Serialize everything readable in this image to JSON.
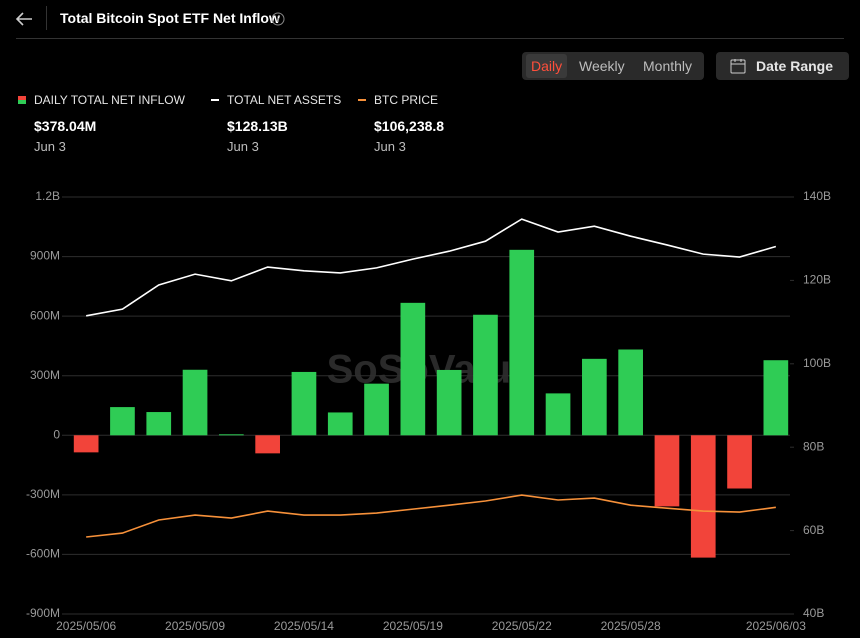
{
  "header": {
    "title": "Total Bitcoin Spot ETF Net Inflow"
  },
  "controls": {
    "periods": [
      "Daily",
      "Weekly",
      "Monthly"
    ],
    "date_range": "Date Range"
  },
  "legend_values": [
    {
      "value": "$378.04M",
      "date": "Jun 3"
    },
    {
      "value": "$128.13B",
      "date": "Jun 3"
    },
    {
      "value": "$106,238.8",
      "date": "Jun 3"
    }
  ],
  "watermark": "SoSoValue",
  "chart_data": {
    "type": "bar",
    "categories": [
      "2025/05/06",
      null,
      null,
      "2025/05/09",
      null,
      null,
      "2025/05/14",
      null,
      null,
      "2025/05/19",
      null,
      null,
      "2025/05/22",
      null,
      null,
      "2025/05/28",
      null,
      null,
      null,
      "2025/06/03"
    ],
    "series": [
      {
        "name": "DAILY TOTAL NET INFLOW",
        "type": "bar",
        "color": "#2fcc55",
        "negative_color": "#f2443a",
        "values": [
          -86000000,
          142000000,
          117000000,
          330000000,
          5000000,
          -91000000,
          319000000,
          115000000,
          260000000,
          667000000,
          329000000,
          607000000,
          934000000,
          211000000,
          385000000,
          432000000,
          -358000000,
          -616000000,
          -268000000,
          378040000
        ]
      },
      {
        "name": "TOTAL NET ASSETS",
        "type": "line",
        "axis": "y2",
        "color": "#ffffff",
        "values": [
          111500000000,
          113100000000,
          118900000000,
          121500000000,
          119900000000,
          123200000000,
          122300000000,
          121800000000,
          123000000000,
          125100000000,
          127000000000,
          129400000000,
          134700000000,
          131600000000,
          133000000000,
          130600000000,
          128500000000,
          126300000000,
          125600000000,
          128130000000
        ]
      },
      {
        "name": "BTC PRICE",
        "type": "line",
        "axis": "y3",
        "color": "#f7913a",
        "values": [
          94200,
          95800,
          101100,
          103100,
          101900,
          104700,
          103100,
          103100,
          103900,
          105500,
          107100,
          108800,
          111200,
          109200,
          110000,
          107100,
          105900,
          104700,
          104300,
          106238.8
        ]
      }
    ],
    "ylim": [
      -900000000,
      1200000000
    ],
    "yticks": [
      {
        "value": -900000000,
        "label": "-900M"
      },
      {
        "value": -600000000,
        "label": "-600M"
      },
      {
        "value": -300000000,
        "label": "-300M"
      },
      0,
      {
        "value": 300000000,
        "label": "300M"
      },
      {
        "value": 600000000,
        "label": "600M"
      },
      {
        "value": 900000000,
        "label": "900M"
      },
      {
        "value": 1200000000,
        "label": "1.2B"
      }
    ],
    "y2lim": [
      40000000000,
      140000000000
    ],
    "y2ticks": [
      {
        "value": 40000000000,
        "label": "40B"
      },
      {
        "value": 60000000000,
        "label": "60B"
      },
      {
        "value": 80000000000,
        "label": "80B"
      },
      {
        "value": 100000000000,
        "label": "100B"
      },
      {
        "value": 120000000000,
        "label": "120B"
      },
      {
        "value": 140000000000,
        "label": "140B"
      }
    ],
    "y3lim": [
      63000,
      232000
    ],
    "grid": true
  }
}
